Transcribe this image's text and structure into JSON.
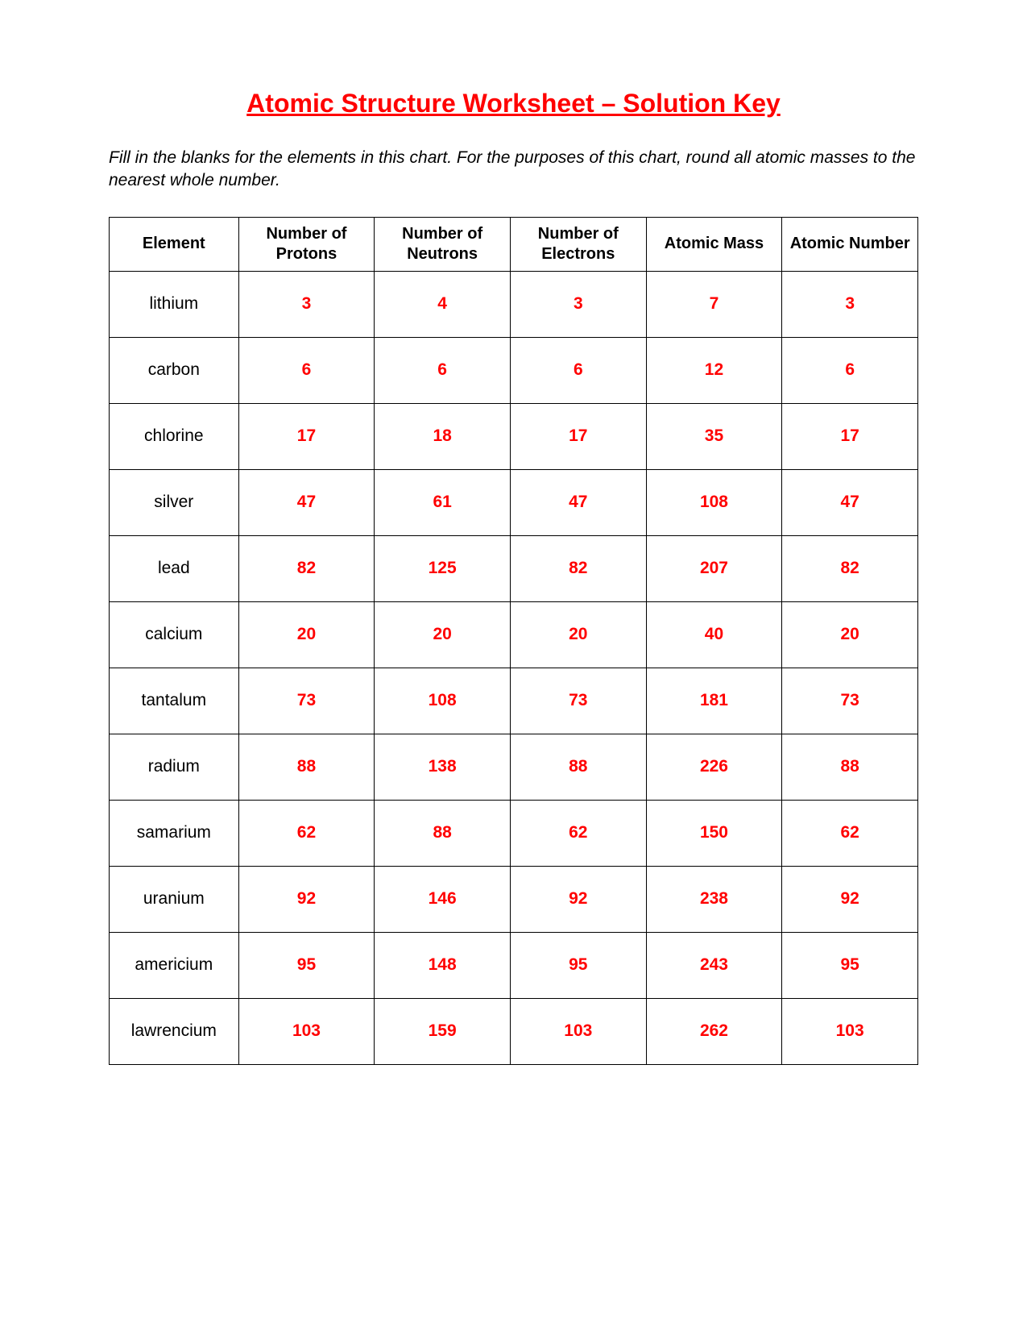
{
  "title": "Atomic Structure Worksheet – Solution Key",
  "instructions": "Fill in the blanks for the elements in this chart.  For the purposes of this chart, round all atomic masses to the nearest whole number.",
  "table": {
    "columns": [
      "Element",
      "Number of Protons",
      "Number of Neutrons",
      "Number of Electrons",
      "Atomic Mass",
      "Atomic Number"
    ],
    "rows": [
      {
        "element": "lithium",
        "protons": "3",
        "neutrons": "4",
        "electrons": "3",
        "mass": "7",
        "number": "3"
      },
      {
        "element": "carbon",
        "protons": "6",
        "neutrons": "6",
        "electrons": "6",
        "mass": "12",
        "number": "6"
      },
      {
        "element": "chlorine",
        "protons": "17",
        "neutrons": "18",
        "electrons": "17",
        "mass": "35",
        "number": "17"
      },
      {
        "element": "silver",
        "protons": "47",
        "neutrons": "61",
        "electrons": "47",
        "mass": "108",
        "number": "47"
      },
      {
        "element": "lead",
        "protons": "82",
        "neutrons": "125",
        "electrons": "82",
        "mass": "207",
        "number": "82"
      },
      {
        "element": "calcium",
        "protons": "20",
        "neutrons": "20",
        "electrons": "20",
        "mass": "40",
        "number": "20"
      },
      {
        "element": "tantalum",
        "protons": "73",
        "neutrons": "108",
        "electrons": "73",
        "mass": "181",
        "number": "73"
      },
      {
        "element": "radium",
        "protons": "88",
        "neutrons": "138",
        "electrons": "88",
        "mass": "226",
        "number": "88"
      },
      {
        "element": "samarium",
        "protons": "62",
        "neutrons": "88",
        "electrons": "62",
        "mass": "150",
        "number": "62"
      },
      {
        "element": "uranium",
        "protons": "92",
        "neutrons": "146",
        "electrons": "92",
        "mass": "238",
        "number": "92"
      },
      {
        "element": "americium",
        "protons": "95",
        "neutrons": "148",
        "electrons": "95",
        "mass": "243",
        "number": "95"
      },
      {
        "element": "lawrencium",
        "protons": "103",
        "neutrons": "159",
        "electrons": "103",
        "mass": "262",
        "number": "103"
      }
    ]
  },
  "colors": {
    "title_color": "#ff0000",
    "text_color": "#000000",
    "value_color": "#ff0000",
    "border_color": "#000000",
    "background_color": "#ffffff"
  }
}
